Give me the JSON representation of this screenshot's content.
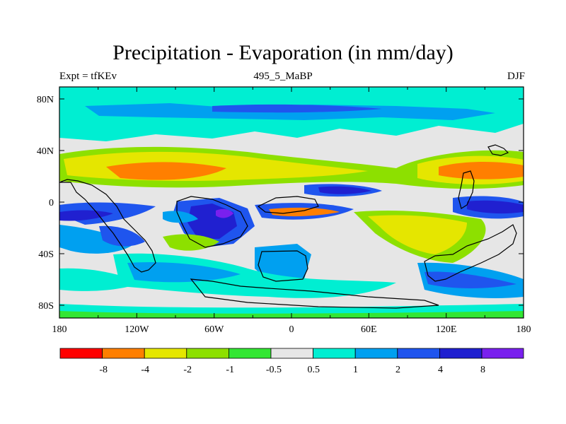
{
  "title": "Precipitation - Evaporation (in mm/day)",
  "subtitle_left": "Expt = tfKEv",
  "subtitle_center": "495_5_MaBP",
  "subtitle_right": "DJF",
  "x_ticks": [
    "180",
    "120W",
    "60W",
    "0",
    "60E",
    "120E",
    "180"
  ],
  "y_ticks": [
    "80N",
    "40N",
    "0",
    "40S",
    "80S"
  ],
  "colorbar_labels": [
    "-8",
    "-4",
    "-2",
    "-1",
    "-0.5",
    "0.5",
    "1",
    "2",
    "4",
    "8"
  ],
  "colors": {
    "c_neg8": "#ff0000",
    "c_neg4": "#ff7f00",
    "c_neg2": "#e5e600",
    "c_neg1": "#8de000",
    "c_neg05": "#33e633",
    "c_zero": "#e6e6e6",
    "c_05": "#00eed2",
    "c_1": "#00a0f0",
    "c_2": "#1f55ee",
    "c_4": "#2020d0",
    "c_8": "#7a20ee"
  }
}
